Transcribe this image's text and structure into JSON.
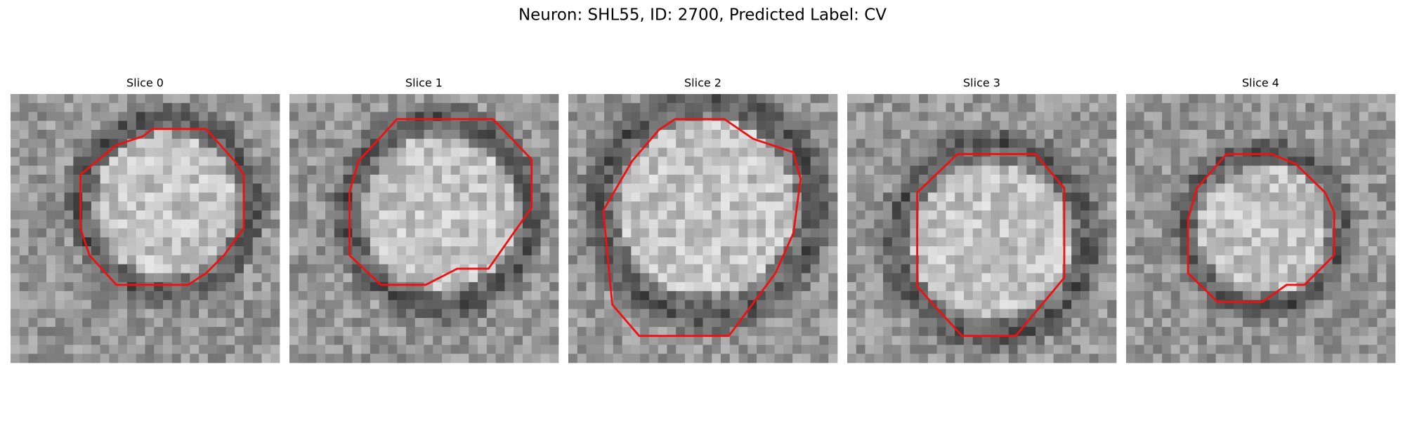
{
  "title": "Neuron: SHL55, ID: 2700, Predicted Label: CV",
  "panels": [
    {
      "title": "Slice 0"
    },
    {
      "title": "Slice 1"
    },
    {
      "title": "Slice 2"
    },
    {
      "title": "Slice 3"
    },
    {
      "title": "Slice 4"
    }
  ]
}
